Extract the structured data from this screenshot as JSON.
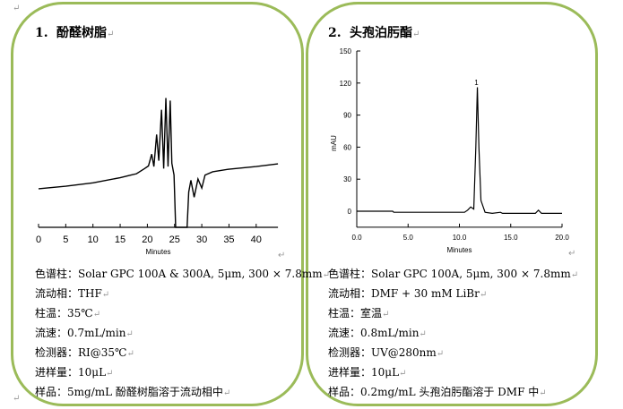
{
  "left": {
    "title_number": "1.",
    "title": "酚醛树脂",
    "info": [
      "色谱柱：Solar GPC 100A & 300A, 5μm, 300 × 7.8mm",
      "流动相：THF",
      "柱温：35℃",
      "流速：0.7mL/min",
      "检测器：RI@35℃",
      "进样量：10μL",
      "样品：5mg/mL 酚醛树脂溶于流动相中"
    ]
  },
  "right": {
    "title_number": "2.",
    "title": "头孢泊肟酯",
    "info": [
      "色谱柱：Solar GPC 100A, 5μm, 300  × 7.8mm",
      "流动相：DMF + 30 mM LiBr",
      "柱温：室温",
      "流速：0.8mL/min",
      "检测器：UV@280nm",
      "进样量：10μL",
      "样品：0.2mg/mL 头孢泊肟酯溶于 DMF 中"
    ]
  },
  "paragraph_mark": "↵",
  "colors": {
    "border": "#9bbb59",
    "trace": "#000000"
  },
  "chart_data": [
    {
      "type": "line",
      "xlabel": "Minutes",
      "ylabel": "",
      "xlim": [
        0,
        44
      ],
      "xticks": [
        0,
        5,
        10,
        15,
        20,
        25,
        30,
        35,
        40
      ],
      "y_axis_shown": false,
      "ylim": [
        0,
        100
      ],
      "series": [
        {
          "points": [
            [
              0,
              29.5
            ],
            [
              5,
              31.5
            ],
            [
              10,
              34
            ],
            [
              15,
              38
            ],
            [
              17,
              40
            ],
            [
              18,
              41
            ],
            [
              19.5,
              45
            ],
            [
              20.2,
              47
            ],
            [
              20.8,
              56
            ],
            [
              21.2,
              46.5
            ],
            [
              21.7,
              71
            ],
            [
              22.1,
              51
            ],
            [
              22.6,
              90
            ],
            [
              23.0,
              45
            ],
            [
              23.4,
              99
            ],
            [
              23.8,
              46.5
            ],
            [
              24.2,
              97
            ],
            [
              24.5,
              49
            ],
            [
              24.9,
              40
            ],
            [
              25.2,
              0
            ],
            [
              27.3,
              0
            ],
            [
              27.6,
              27
            ],
            [
              28.0,
              36
            ],
            [
              28.6,
              23
            ],
            [
              29.3,
              37
            ],
            [
              30.0,
              30
            ],
            [
              30.6,
              40
            ],
            [
              32,
              42.5
            ],
            [
              35,
              44.5
            ],
            [
              40,
              46.5
            ],
            [
              44,
              48.6
            ]
          ]
        }
      ]
    },
    {
      "type": "line",
      "xlabel": "Minutes",
      "ylabel": "mAU",
      "xlim": [
        0,
        20
      ],
      "ylim": [
        -15,
        150
      ],
      "xticks": [
        "0.0",
        "5.0",
        "10.0",
        "15.0",
        "20.0"
      ],
      "yticks": [
        "0",
        "30",
        "60",
        "90",
        "120",
        "150"
      ],
      "annotations": [
        {
          "text": "1",
          "x": 11.75,
          "y": 120
        }
      ],
      "series": [
        {
          "points": [
            [
              0,
              0
            ],
            [
              3.5,
              0
            ],
            [
              3.6,
              -1
            ],
            [
              10.5,
              -1
            ],
            [
              10.8,
              1
            ],
            [
              11.1,
              4
            ],
            [
              11.4,
              2
            ],
            [
              11.6,
              60
            ],
            [
              11.75,
              116
            ],
            [
              11.9,
              60
            ],
            [
              12.1,
              10
            ],
            [
              12.5,
              -1
            ],
            [
              13.2,
              -2
            ],
            [
              14,
              -1
            ],
            [
              14.2,
              -2
            ],
            [
              17.4,
              -2
            ],
            [
              17.7,
              1
            ],
            [
              18,
              -2
            ],
            [
              20,
              -2
            ]
          ]
        }
      ]
    }
  ]
}
